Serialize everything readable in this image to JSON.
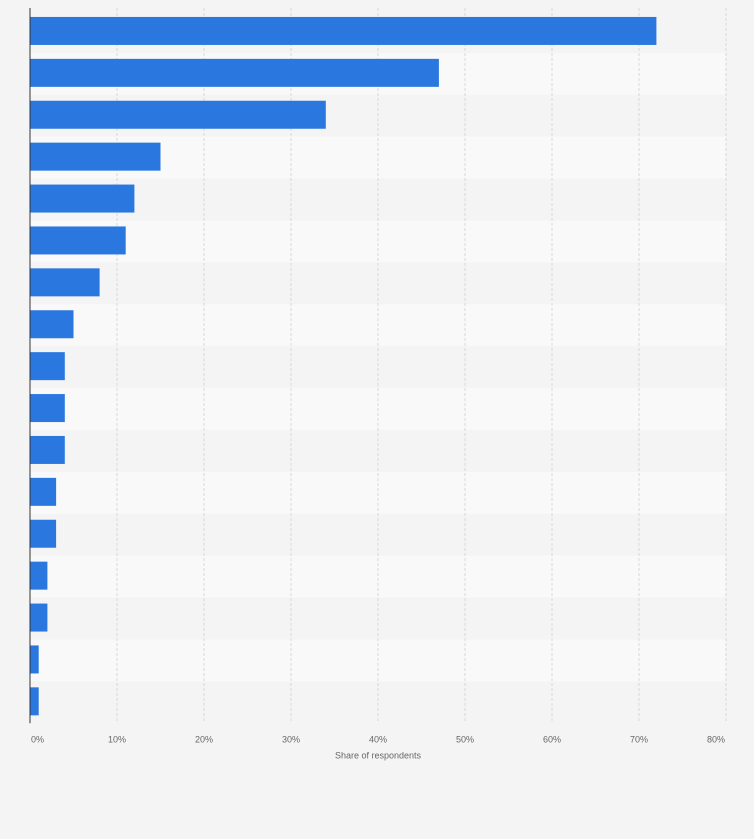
{
  "chart_data": {
    "type": "bar",
    "orientation": "horizontal",
    "title": "",
    "xlabel": "Share of respondents",
    "ylabel": "",
    "xlim": [
      0,
      80
    ],
    "ticks": [
      "0%",
      "10%",
      "20%",
      "30%",
      "40%",
      "50%",
      "60%",
      "70%",
      "80%"
    ],
    "values": [
      72,
      47,
      34,
      15,
      12,
      11,
      8,
      5,
      4,
      4,
      4,
      3,
      3,
      2,
      2,
      1,
      1
    ],
    "bar_color": "#2a77e0",
    "grid": true,
    "legend": "none"
  }
}
